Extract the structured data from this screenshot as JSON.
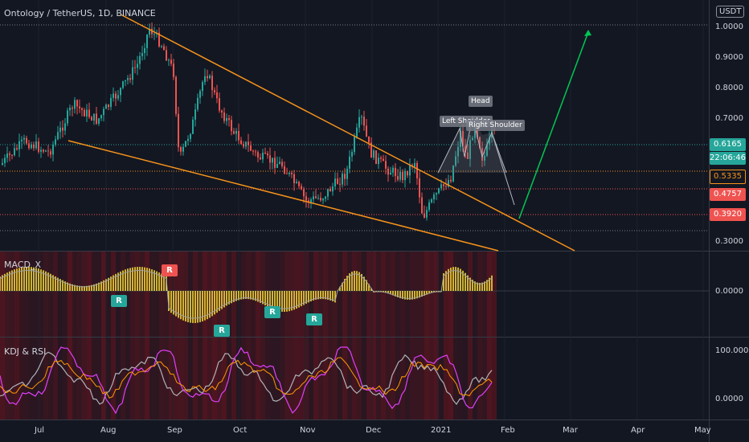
{
  "header": {
    "title": "Ontology / TetherUS, 1D, BINANCE",
    "unit": "USDT"
  },
  "price_axis": [
    "1.0000",
    "0.9000",
    "0.8000",
    "0.7000",
    "0.3000"
  ],
  "price_tags": {
    "current": "0.6165",
    "countdown": "22:06:46",
    "level1": "0.5335",
    "level2": "0.4757",
    "level3": "0.3920"
  },
  "annotations": {
    "head": "Head",
    "left_shoulder": "Left Shoulder",
    "right_shoulder": "Right Shoulder"
  },
  "macd": {
    "title": "MACD_X",
    "axis_zero": "0.0000",
    "signal_label": "R"
  },
  "kdj": {
    "title": "KDJ & RSI",
    "axis_top": "100.0000",
    "axis_zero": "0.0000"
  },
  "time_axis": [
    "Jul",
    "Aug",
    "Sep",
    "Oct",
    "Nov",
    "Dec",
    "2021",
    "Feb",
    "Mar",
    "Apr",
    "May"
  ],
  "colors": {
    "background": "#131722",
    "up": "#26a69a",
    "down": "#ef5350",
    "trendline": "#f7931a",
    "projection": "#00c853",
    "macd_hist": "#ffeb3b",
    "k": "#e040fb",
    "d": "#ff9800",
    "j": "#b0b3b8"
  },
  "chart_data": {
    "type": "candlestick",
    "symbol": "Ontology / TetherUS",
    "interval": "1D",
    "exchange": "BINANCE",
    "ylim": [
      0.29,
      1.05
    ],
    "key_levels": [
      0.6165,
      0.5335,
      0.4757,
      0.392,
      1.0
    ],
    "pattern": "falling wedge with head and shoulders",
    "last_price": 0.6165
  }
}
